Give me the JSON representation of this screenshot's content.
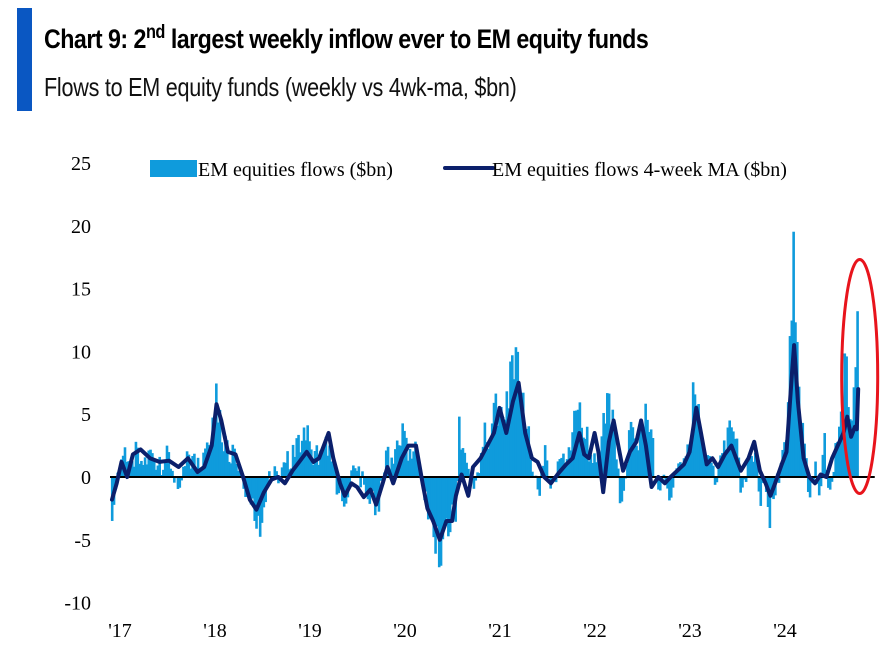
{
  "header": {
    "title_prefix": "Chart 9: 2",
    "title_sup": "nd",
    "title_suffix": " largest weekly inflow ever to EM equity funds",
    "subtitle": "Flows to EM equity funds (weekly vs 4wk-ma, $bn)"
  },
  "colors": {
    "accent": "#0a57c2",
    "bars": "#0f9bdc",
    "ma_line": "#0b1f6b",
    "zero_line": "#000000",
    "highlight_ellipse": "#e8141c"
  },
  "chart_data": {
    "type": "bar+line",
    "title": "Chart 9: 2nd largest weekly inflow ever to EM equity funds",
    "subtitle": "Flows to EM equity funds (weekly vs 4wk-ma, $bn)",
    "xlabel": "",
    "ylabel": "",
    "ylim": [
      -10,
      25
    ],
    "yticks": [
      25,
      20,
      15,
      10,
      5,
      0,
      -5,
      -10
    ],
    "xlim_years": [
      2017.0,
      2024.85
    ],
    "xticks": [
      {
        "label": "'17",
        "year": 2017
      },
      {
        "label": "'18",
        "year": 2018
      },
      {
        "label": "'19",
        "year": 2019
      },
      {
        "label": "'20",
        "year": 2020
      },
      {
        "label": "'21",
        "year": 2021
      },
      {
        "label": "'22",
        "year": 2022
      },
      {
        "label": "'23",
        "year": 2023
      },
      {
        "label": "'24",
        "year": 2024
      }
    ],
    "grid": false,
    "legend": {
      "position": "top",
      "entries": [
        {
          "label": "EM equities flows ($bn)",
          "type": "bar"
        },
        {
          "label": "EM equities flows 4-week MA ($bn)",
          "type": "line"
        }
      ]
    },
    "annotation": {
      "type": "ellipse",
      "target": "latest weeks (late 2024)",
      "text": ""
    },
    "anchors_weekly": [
      [
        2017.0,
        -3.5
      ],
      [
        2017.03,
        -1.5
      ],
      [
        2017.06,
        0.5
      ],
      [
        2017.1,
        1.5
      ],
      [
        2017.14,
        2.5
      ],
      [
        2017.2,
        0.8
      ],
      [
        2017.25,
        2.8
      ],
      [
        2017.3,
        1.2
      ],
      [
        2017.4,
        2.2
      ],
      [
        2017.5,
        1.6
      ],
      [
        2017.6,
        2.0
      ],
      [
        2017.7,
        -1.2
      ],
      [
        2017.8,
        1.8
      ],
      [
        2017.9,
        1.5
      ],
      [
        2017.97,
        2.0
      ],
      [
        2018.05,
        4.0
      ],
      [
        2018.09,
        7.8
      ],
      [
        2018.13,
        5.5
      ],
      [
        2018.2,
        3.0
      ],
      [
        2018.28,
        2.5
      ],
      [
        2018.35,
        0.5
      ],
      [
        2018.45,
        -1.8
      ],
      [
        2018.5,
        -3.5
      ],
      [
        2018.55,
        -5.2
      ],
      [
        2018.65,
        0.5
      ],
      [
        2018.75,
        -0.5
      ],
      [
        2018.82,
        1.0
      ],
      [
        2018.9,
        2.5
      ],
      [
        2018.95,
        3.2
      ],
      [
        2019.05,
        4.5
      ],
      [
        2019.1,
        2.0
      ],
      [
        2019.15,
        2.5
      ],
      [
        2019.25,
        3.2
      ],
      [
        2019.3,
        1.5
      ],
      [
        2019.38,
        -1.2
      ],
      [
        2019.45,
        -2.5
      ],
      [
        2019.55,
        0.8
      ],
      [
        2019.65,
        -0.5
      ],
      [
        2019.7,
        -2.0
      ],
      [
        2019.8,
        -3.2
      ],
      [
        2019.9,
        2.5
      ],
      [
        2019.96,
        1.0
      ],
      [
        2020.05,
        4.5
      ],
      [
        2020.1,
        3.0
      ],
      [
        2020.2,
        2.8
      ],
      [
        2020.28,
        -1.5
      ],
      [
        2020.33,
        -3.5
      ],
      [
        2020.4,
        -6.0
      ],
      [
        2020.45,
        -7.4
      ],
      [
        2020.55,
        -4.5
      ],
      [
        2020.62,
        -3.5
      ],
      [
        2020.65,
        5.0
      ],
      [
        2020.72,
        1.5
      ],
      [
        2020.8,
        -1.2
      ],
      [
        2020.85,
        0.5
      ],
      [
        2020.92,
        4.5
      ],
      [
        2020.97,
        1.8
      ],
      [
        2021.03,
        6.8
      ],
      [
        2021.1,
        5.5
      ],
      [
        2021.2,
        9.5
      ],
      [
        2021.26,
        10.5
      ],
      [
        2021.32,
        7.0
      ],
      [
        2021.38,
        4.5
      ],
      [
        2021.42,
        0.5
      ],
      [
        2021.5,
        -1.5
      ],
      [
        2021.55,
        3.0
      ],
      [
        2021.62,
        -1.2
      ],
      [
        2021.7,
        1.5
      ],
      [
        2021.78,
        1.0
      ],
      [
        2021.87,
        5.5
      ],
      [
        2021.93,
        6.0
      ],
      [
        2022.0,
        4.0
      ],
      [
        2022.06,
        1.0
      ],
      [
        2022.12,
        2.0
      ],
      [
        2022.18,
        5.5
      ],
      [
        2022.22,
        7.0
      ],
      [
        2022.28,
        5.0
      ],
      [
        2022.35,
        -2.5
      ],
      [
        2022.4,
        -0.5
      ],
      [
        2022.45,
        4.5
      ],
      [
        2022.55,
        3.5
      ],
      [
        2022.62,
        6.0
      ],
      [
        2022.68,
        3.5
      ],
      [
        2022.75,
        -1.0
      ],
      [
        2022.8,
        0.5
      ],
      [
        2022.86,
        -2.0
      ],
      [
        2022.9,
        -1.0
      ],
      [
        2022.95,
        1.0
      ],
      [
        2023.02,
        1.5
      ],
      [
        2023.08,
        2.5
      ],
      [
        2023.12,
        8.2
      ],
      [
        2023.18,
        5.5
      ],
      [
        2023.22,
        2.0
      ],
      [
        2023.3,
        1.5
      ],
      [
        2023.35,
        -0.8
      ],
      [
        2023.42,
        1.8
      ],
      [
        2023.5,
        4.5
      ],
      [
        2023.58,
        3.0
      ],
      [
        2023.62,
        -1.8
      ],
      [
        2023.7,
        1.5
      ],
      [
        2023.78,
        2.0
      ],
      [
        2023.82,
        -2.5
      ],
      [
        2023.88,
        -0.8
      ],
      [
        2023.92,
        -4.2
      ],
      [
        2023.98,
        -1.5
      ],
      [
        2024.05,
        2.0
      ],
      [
        2024.1,
        3.0
      ],
      [
        2024.14,
        12.5
      ],
      [
        2024.18,
        21.0
      ],
      [
        2024.22,
        8.0
      ],
      [
        2024.28,
        3.5
      ],
      [
        2024.33,
        -1.5
      ],
      [
        2024.4,
        1.5
      ],
      [
        2024.45,
        -2.0
      ],
      [
        2024.5,
        3.5
      ],
      [
        2024.55,
        -1.5
      ],
      [
        2024.62,
        3.0
      ],
      [
        2024.68,
        5.5
      ],
      [
        2024.72,
        11.0
      ],
      [
        2024.77,
        4.5
      ],
      [
        2024.8,
        6.5
      ],
      [
        2024.83,
        9.0
      ],
      [
        2024.855,
        15.5
      ]
    ],
    "anchors_ma": [
      [
        2017.0,
        -1.8
      ],
      [
        2017.05,
        -0.5
      ],
      [
        2017.1,
        1.2
      ],
      [
        2017.16,
        0.0
      ],
      [
        2017.22,
        1.8
      ],
      [
        2017.3,
        2.2
      ],
      [
        2017.4,
        1.5
      ],
      [
        2017.5,
        1.2
      ],
      [
        2017.6,
        1.3
      ],
      [
        2017.7,
        0.8
      ],
      [
        2017.8,
        1.5
      ],
      [
        2017.9,
        0.4
      ],
      [
        2017.97,
        0.8
      ],
      [
        2018.05,
        2.5
      ],
      [
        2018.1,
        5.8
      ],
      [
        2018.15,
        4.5
      ],
      [
        2018.22,
        2.0
      ],
      [
        2018.3,
        1.8
      ],
      [
        2018.38,
        0.0
      ],
      [
        2018.45,
        -1.8
      ],
      [
        2018.52,
        -2.6
      ],
      [
        2018.6,
        -1.2
      ],
      [
        2018.68,
        -0.2
      ],
      [
        2018.75,
        0.0
      ],
      [
        2018.82,
        -0.5
      ],
      [
        2018.9,
        0.5
      ],
      [
        2018.97,
        1.2
      ],
      [
        2019.05,
        2.0
      ],
      [
        2019.12,
        1.2
      ],
      [
        2019.18,
        1.5
      ],
      [
        2019.28,
        3.5
      ],
      [
        2019.33,
        1.5
      ],
      [
        2019.4,
        -0.5
      ],
      [
        2019.45,
        -1.5
      ],
      [
        2019.52,
        -0.5
      ],
      [
        2019.58,
        -0.8
      ],
      [
        2019.65,
        -1.6
      ],
      [
        2019.72,
        -1.0
      ],
      [
        2019.78,
        -2.2
      ],
      [
        2019.85,
        -0.5
      ],
      [
        2019.9,
        0.8
      ],
      [
        2019.96,
        -0.5
      ],
      [
        2020.05,
        1.5
      ],
      [
        2020.12,
        2.5
      ],
      [
        2020.2,
        2.5
      ],
      [
        2020.27,
        -0.5
      ],
      [
        2020.32,
        -2.5
      ],
      [
        2020.38,
        -3.5
      ],
      [
        2020.45,
        -5.0
      ],
      [
        2020.52,
        -3.5
      ],
      [
        2020.58,
        -3.5
      ],
      [
        2020.62,
        -1.5
      ],
      [
        2020.68,
        0.2
      ],
      [
        2020.75,
        -1.5
      ],
      [
        2020.8,
        0.8
      ],
      [
        2020.88,
        1.5
      ],
      [
        2020.95,
        2.5
      ],
      [
        2021.02,
        3.5
      ],
      [
        2021.08,
        5.5
      ],
      [
        2021.15,
        3.5
      ],
      [
        2021.22,
        6.0
      ],
      [
        2021.28,
        7.5
      ],
      [
        2021.35,
        3.5
      ],
      [
        2021.42,
        1.5
      ],
      [
        2021.48,
        1.2
      ],
      [
        2021.55,
        0.0
      ],
      [
        2021.62,
        -0.5
      ],
      [
        2021.7,
        0.3
      ],
      [
        2021.78,
        1.0
      ],
      [
        2021.85,
        1.5
      ],
      [
        2021.92,
        3.5
      ],
      [
        2021.97,
        1.8
      ],
      [
        2022.02,
        1.5
      ],
      [
        2022.08,
        3.5
      ],
      [
        2022.12,
        2.0
      ],
      [
        2022.17,
        -1.2
      ],
      [
        2022.23,
        2.8
      ],
      [
        2022.28,
        4.5
      ],
      [
        2022.33,
        2.5
      ],
      [
        2022.38,
        0.5
      ],
      [
        2022.45,
        2.0
      ],
      [
        2022.52,
        2.8
      ],
      [
        2022.57,
        4.5
      ],
      [
        2022.62,
        2.5
      ],
      [
        2022.68,
        -0.8
      ],
      [
        2022.75,
        0.0
      ],
      [
        2022.82,
        -0.5
      ],
      [
        2022.88,
        0.0
      ],
      [
        2022.95,
        0.5
      ],
      [
        2023.02,
        1.0
      ],
      [
        2023.08,
        2.0
      ],
      [
        2023.15,
        5.5
      ],
      [
        2023.2,
        3.5
      ],
      [
        2023.26,
        1.0
      ],
      [
        2023.32,
        1.5
      ],
      [
        2023.38,
        0.8
      ],
      [
        2023.45,
        1.8
      ],
      [
        2023.52,
        2.5
      ],
      [
        2023.57,
        1.5
      ],
      [
        2023.62,
        0.5
      ],
      [
        2023.7,
        1.5
      ],
      [
        2023.76,
        2.8
      ],
      [
        2023.82,
        0.5
      ],
      [
        2023.88,
        -0.5
      ],
      [
        2023.93,
        -1.5
      ],
      [
        2023.98,
        -0.5
      ],
      [
        2024.05,
        1.0
      ],
      [
        2024.1,
        2.0
      ],
      [
        2024.16,
        8.5
      ],
      [
        2024.18,
        10.5
      ],
      [
        2024.22,
        6.0
      ],
      [
        2024.28,
        1.5
      ],
      [
        2024.34,
        0.0
      ],
      [
        2024.4,
        -0.5
      ],
      [
        2024.46,
        0.2
      ],
      [
        2024.52,
        0.0
      ],
      [
        2024.58,
        1.5
      ],
      [
        2024.64,
        2.5
      ],
      [
        2024.7,
        3.5
      ],
      [
        2024.74,
        4.8
      ],
      [
        2024.78,
        3.2
      ],
      [
        2024.82,
        4.0
      ],
      [
        2024.84,
        3.8
      ],
      [
        2024.855,
        7.0
      ]
    ]
  }
}
